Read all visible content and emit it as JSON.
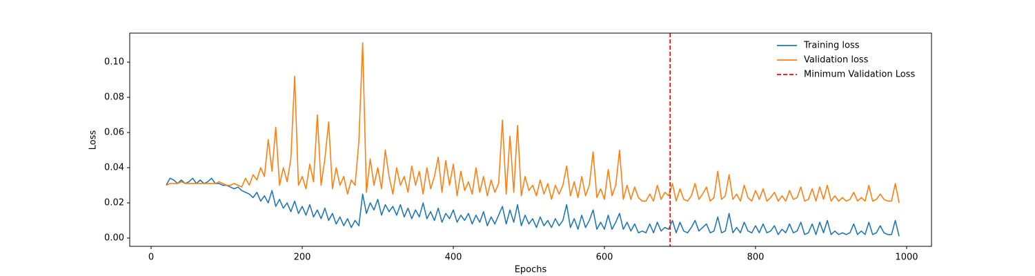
{
  "chart_data": {
    "type": "line",
    "xlabel": "Epochs",
    "ylabel": "Loss",
    "xlim": [
      -28.3,
      1032.9
    ],
    "ylim": [
      -0.0047,
      0.1165
    ],
    "xticks": [
      0,
      200,
      400,
      600,
      800,
      1000
    ],
    "yticks": [
      {
        "value": 0,
        "label": "0.00"
      },
      0.02,
      0.04,
      0.06,
      0.08,
      {
        "value": 0.1,
        "label": "0.10"
      }
    ],
    "legend": "upper right",
    "x": [
      20,
      25,
      30,
      35,
      40,
      45,
      50,
      55,
      60,
      65,
      70,
      75,
      80,
      85,
      90,
      95,
      100,
      105,
      110,
      115,
      120,
      125,
      130,
      135,
      140,
      145,
      150,
      155,
      160,
      165,
      170,
      175,
      180,
      185,
      190,
      195,
      200,
      205,
      210,
      215,
      220,
      225,
      230,
      235,
      240,
      245,
      250,
      255,
      260,
      265,
      270,
      275,
      280,
      285,
      290,
      295,
      300,
      305,
      310,
      315,
      320,
      325,
      330,
      335,
      340,
      345,
      350,
      355,
      360,
      365,
      370,
      375,
      380,
      385,
      390,
      395,
      400,
      405,
      410,
      415,
      420,
      425,
      430,
      435,
      440,
      445,
      450,
      455,
      460,
      465,
      470,
      475,
      480,
      485,
      490,
      495,
      500,
      505,
      510,
      515,
      520,
      525,
      530,
      535,
      540,
      545,
      550,
      555,
      560,
      565,
      570,
      575,
      580,
      585,
      590,
      595,
      600,
      605,
      610,
      615,
      620,
      625,
      630,
      635,
      640,
      645,
      650,
      655,
      660,
      665,
      670,
      675,
      680,
      685,
      690,
      695,
      700,
      705,
      710,
      715,
      720,
      725,
      730,
      735,
      740,
      745,
      750,
      755,
      760,
      765,
      770,
      775,
      780,
      785,
      790,
      795,
      800,
      805,
      810,
      815,
      820,
      825,
      830,
      835,
      840,
      845,
      850,
      855,
      860,
      865,
      870,
      875,
      880,
      885,
      890,
      895,
      900,
      905,
      910,
      915,
      920,
      925,
      930,
      935,
      940,
      945,
      950,
      955,
      960,
      965,
      970,
      975,
      980,
      985,
      990
    ],
    "series": [
      {
        "name": "Training loss",
        "color": "#1f77b4",
        "values": [
          0.03,
          0.034,
          0.033,
          0.031,
          0.033,
          0.031,
          0.032,
          0.034,
          0.031,
          0.033,
          0.031,
          0.032,
          0.034,
          0.031,
          0.031,
          0.03,
          0.03,
          0.029,
          0.028,
          0.029,
          0.027,
          0.026,
          0.025,
          0.023,
          0.026,
          0.021,
          0.024,
          0.02,
          0.027,
          0.018,
          0.022,
          0.017,
          0.02,
          0.015,
          0.021,
          0.014,
          0.018,
          0.013,
          0.019,
          0.012,
          0.016,
          0.011,
          0.017,
          0.01,
          0.014,
          0.008,
          0.012,
          0.007,
          0.011,
          0.006,
          0.01,
          0.007,
          0.025,
          0.014,
          0.02,
          0.016,
          0.022,
          0.013,
          0.019,
          0.015,
          0.018,
          0.013,
          0.019,
          0.012,
          0.017,
          0.011,
          0.016,
          0.012,
          0.02,
          0.011,
          0.015,
          0.01,
          0.017,
          0.009,
          0.014,
          0.011,
          0.016,
          0.009,
          0.013,
          0.01,
          0.014,
          0.008,
          0.013,
          0.009,
          0.015,
          0.007,
          0.012,
          0.008,
          0.013,
          0.018,
          0.008,
          0.016,
          0.009,
          0.019,
          0.007,
          0.013,
          0.008,
          0.011,
          0.006,
          0.012,
          0.007,
          0.01,
          0.006,
          0.011,
          0.007,
          0.01,
          0.019,
          0.006,
          0.011,
          0.005,
          0.013,
          0.006,
          0.01,
          0.016,
          0.005,
          0.009,
          0.005,
          0.013,
          0.005,
          0.009,
          0.014,
          0.005,
          0.009,
          0.004,
          0.008,
          0.003,
          0.004,
          0.003,
          0.008,
          0.003,
          0.009,
          0.004,
          0.006,
          0.005,
          0.01,
          0.003,
          0.009,
          0.004,
          0.003,
          0.006,
          0.01,
          0.004,
          0.006,
          0.008,
          0.003,
          0.004,
          0.012,
          0.003,
          0.004,
          0.014,
          0.003,
          0.006,
          0.003,
          0.009,
          0.004,
          0.003,
          0.007,
          0.003,
          0.008,
          0.003,
          0.004,
          0.007,
          0.002,
          0.005,
          0.003,
          0.008,
          0.003,
          0.004,
          0.009,
          0.002,
          0.003,
          0.008,
          0.002,
          0.009,
          0.003,
          0.01,
          0.002,
          0.004,
          0.002,
          0.003,
          0.002,
          0.003,
          0.008,
          0.002,
          0.004,
          0.002,
          0.009,
          0.002,
          0.003,
          0.007,
          0.003,
          0.002,
          0.002,
          0.01,
          0.001
        ]
      },
      {
        "name": "Validation loss",
        "color": "#ff7f0e",
        "values": [
          0.03,
          0.031,
          0.031,
          0.031,
          0.032,
          0.031,
          0.031,
          0.031,
          0.031,
          0.031,
          0.031,
          0.031,
          0.031,
          0.031,
          0.032,
          0.031,
          0.03,
          0.03,
          0.031,
          0.03,
          0.029,
          0.034,
          0.03,
          0.036,
          0.033,
          0.04,
          0.035,
          0.056,
          0.038,
          0.063,
          0.03,
          0.04,
          0.032,
          0.045,
          0.092,
          0.03,
          0.035,
          0.028,
          0.042,
          0.032,
          0.07,
          0.03,
          0.045,
          0.066,
          0.028,
          0.04,
          0.03,
          0.035,
          0.025,
          0.033,
          0.03,
          0.055,
          0.111,
          0.026,
          0.045,
          0.03,
          0.04,
          0.028,
          0.05,
          0.035,
          0.025,
          0.04,
          0.03,
          0.035,
          0.026,
          0.041,
          0.03,
          0.038,
          0.025,
          0.04,
          0.028,
          0.035,
          0.046,
          0.026,
          0.044,
          0.03,
          0.042,
          0.024,
          0.038,
          0.027,
          0.032,
          0.025,
          0.04,
          0.026,
          0.035,
          0.024,
          0.033,
          0.026,
          0.031,
          0.067,
          0.025,
          0.058,
          0.026,
          0.064,
          0.024,
          0.035,
          0.027,
          0.03,
          0.024,
          0.033,
          0.025,
          0.031,
          0.022,
          0.03,
          0.025,
          0.03,
          0.041,
          0.024,
          0.032,
          0.023,
          0.035,
          0.024,
          0.03,
          0.049,
          0.023,
          0.028,
          0.022,
          0.039,
          0.024,
          0.03,
          0.05,
          0.022,
          0.03,
          0.022,
          0.029,
          0.023,
          0.021,
          0.021,
          0.025,
          0.021,
          0.03,
          0.022,
          0.026,
          0.024,
          0.031,
          0.021,
          0.028,
          0.022,
          0.021,
          0.024,
          0.031,
          0.022,
          0.025,
          0.029,
          0.021,
          0.023,
          0.038,
          0.022,
          0.024,
          0.036,
          0.022,
          0.025,
          0.021,
          0.03,
          0.023,
          0.021,
          0.027,
          0.022,
          0.028,
          0.021,
          0.023,
          0.026,
          0.021,
          0.024,
          0.021,
          0.027,
          0.022,
          0.023,
          0.029,
          0.021,
          0.022,
          0.028,
          0.021,
          0.029,
          0.022,
          0.03,
          0.021,
          0.024,
          0.021,
          0.023,
          0.021,
          0.022,
          0.026,
          0.021,
          0.023,
          0.021,
          0.03,
          0.021,
          0.022,
          0.025,
          0.022,
          0.021,
          0.021,
          0.031,
          0.02
        ]
      }
    ],
    "vline": {
      "name": "Minimum Validation Loss",
      "x": 687,
      "color": "#ff0000"
    }
  }
}
